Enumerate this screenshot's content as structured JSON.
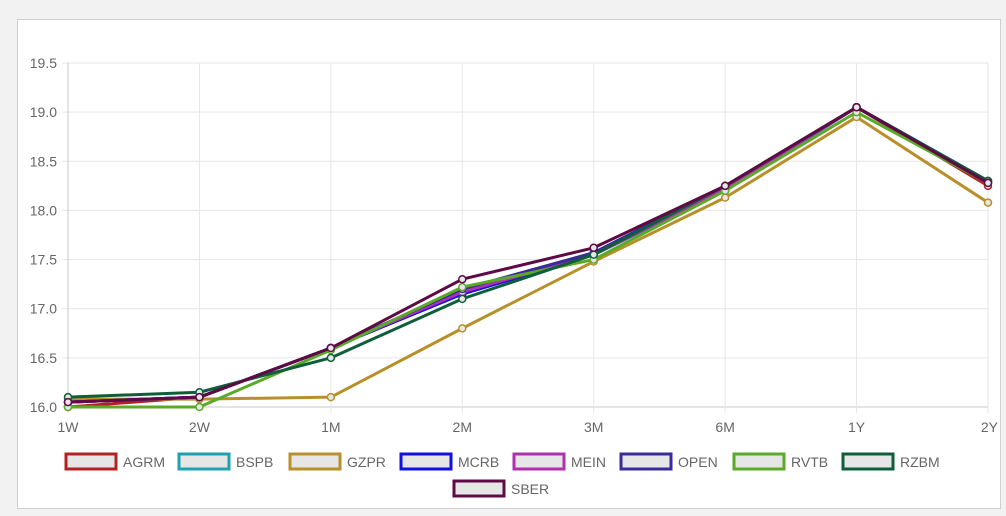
{
  "chart_data": {
    "type": "line",
    "categories": [
      "1W",
      "2W",
      "1M",
      "2M",
      "3M",
      "6M",
      "1Y",
      "2Y"
    ],
    "ylim": [
      16.0,
      19.5
    ],
    "yticks": [
      "16.0",
      "16.5",
      "17.0",
      "17.5",
      "18.0",
      "18.5",
      "19.0",
      "19.5"
    ],
    "grid": true,
    "legend_position": "bottom",
    "series": [
      {
        "name": "AGRM",
        "color": "#b22222",
        "values": [
          16.0,
          16.1,
          16.6,
          17.15,
          17.55,
          18.2,
          19.05,
          18.25
        ]
      },
      {
        "name": "BSPB",
        "color": "#20a0b0",
        "values": [
          16.05,
          16.1,
          16.6,
          17.15,
          17.55,
          18.2,
          19.05,
          18.28
        ]
      },
      {
        "name": "GZPR",
        "color": "#b8902a",
        "values": [
          16.08,
          16.08,
          16.1,
          16.8,
          17.48,
          18.13,
          18.95,
          18.08
        ]
      },
      {
        "name": "MCRB",
        "color": "#1010e0",
        "values": [
          16.05,
          16.1,
          16.6,
          17.15,
          17.55,
          18.22,
          19.05,
          18.3
        ]
      },
      {
        "name": "MEIN",
        "color": "#b030b0",
        "values": [
          16.05,
          16.1,
          16.6,
          17.17,
          17.55,
          18.22,
          19.05,
          18.28
        ]
      },
      {
        "name": "OPEN",
        "color": "#3a2a9a",
        "values": [
          16.05,
          16.1,
          16.6,
          17.2,
          17.57,
          18.25,
          19.05,
          18.3
        ]
      },
      {
        "name": "RVTB",
        "color": "#5aaa28",
        "values": [
          16.0,
          16.0,
          16.58,
          17.22,
          17.5,
          18.2,
          19.0,
          18.28
        ]
      },
      {
        "name": "RZBM",
        "color": "#0e5e3a",
        "values": [
          16.1,
          16.15,
          16.5,
          17.1,
          17.55,
          18.25,
          19.05,
          18.3
        ]
      },
      {
        "name": "SBER",
        "color": "#5e0a44",
        "values": [
          16.05,
          16.1,
          16.6,
          17.3,
          17.62,
          18.25,
          19.05,
          18.28
        ]
      }
    ]
  }
}
